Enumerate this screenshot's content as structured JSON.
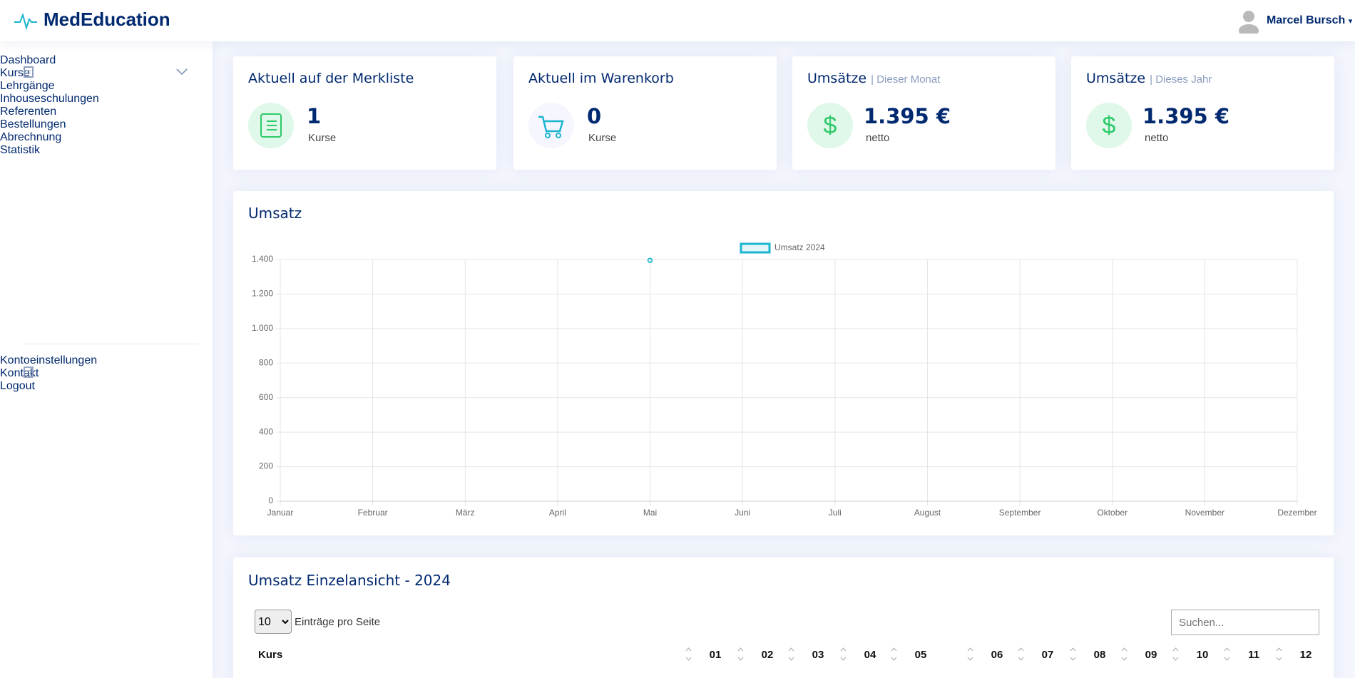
{
  "header": {
    "brand": "MedEducation",
    "user": "Marcel Bursch"
  },
  "sidebar": {
    "items": [
      "Dashboard",
      "Kurse",
      "Lehrgänge",
      "Inhouseschulungen",
      "Referenten",
      "Bestellungen",
      "Abrechnung",
      "Statistik"
    ],
    "account_items": [
      "Kontoeinstellungen",
      "Kontakt",
      "Logout"
    ]
  },
  "cards": [
    {
      "title": "Aktuell auf der Merkliste",
      "value": 1,
      "unit": "Kurse"
    },
    {
      "title": "Aktuell im Warenkorb",
      "value": 0,
      "unit": "Kurse"
    },
    {
      "title": "Umsätze",
      "subtitle": "| Dieser Monat",
      "value": "1.395 €",
      "unit": "netto"
    },
    {
      "title": "Umsätze",
      "subtitle": "| Dieses Jahr",
      "value": "1.395 €",
      "unit": "netto"
    }
  ],
  "chart_data": {
    "type": "line",
    "title": "Umsatz",
    "categories": [
      "Januar",
      "Februar",
      "März",
      "April",
      "Mai",
      "Juni",
      "Juli",
      "August",
      "September",
      "Oktober",
      "November",
      "Dezember"
    ],
    "series": [
      {
        "name": "Umsatz 2024",
        "color": "#1bb5cf",
        "values": [
          null,
          null,
          null,
          null,
          1395,
          null,
          null,
          null,
          null,
          null,
          null,
          null
        ]
      }
    ],
    "ylim": [
      0,
      1400
    ],
    "yticks": [
      0,
      200,
      400,
      600,
      800,
      {
        "value": 1000,
        "label": "1.000"
      },
      {
        "value": 1200,
        "label": "1.200"
      },
      {
        "value": 1400,
        "label": "1.400"
      }
    ],
    "grid": true,
    "legend": "top"
  },
  "table": {
    "title": "Umsatz Einzelansicht - 2024",
    "page_size": 10,
    "page_size_label": "Einträge pro Seite",
    "search_placeholder": "Suchen...",
    "columns": [
      "Kurs",
      "01",
      "02",
      "03",
      "04",
      "05",
      "06",
      "07",
      "08",
      "09",
      "10",
      "11",
      "12"
    ]
  }
}
